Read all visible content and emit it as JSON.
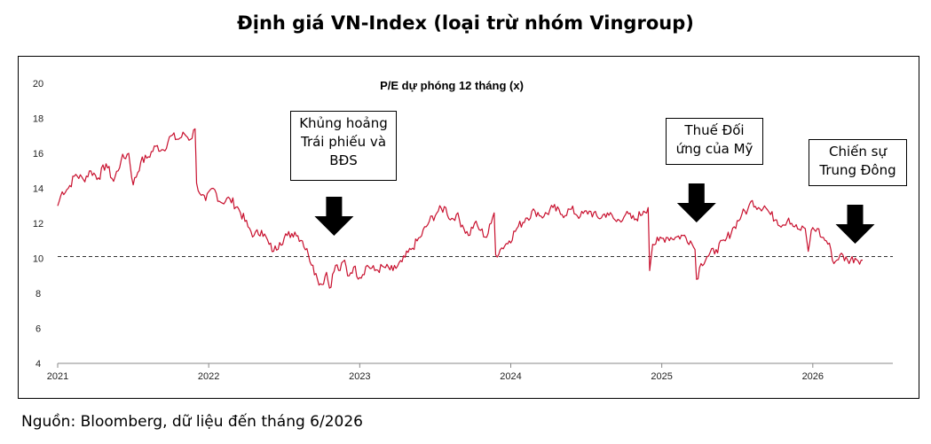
{
  "page": {
    "title": "Định giá VN-Index (loại trừ nhóm Vingroup)",
    "source": "Nguồn: Bloomberg, dữ liệu đến tháng 6/2026"
  },
  "colors": {
    "series": "#c8102e",
    "reference": "#333333",
    "axis": "#888888",
    "arrow": "#000000"
  },
  "chart_data": {
    "type": "line",
    "title": "P/E dự phóng 12 tháng (x)",
    "xlabel": "",
    "ylabel": "",
    "ylim": [
      4,
      20
    ],
    "yticks": [
      4,
      6,
      8,
      10,
      12,
      14,
      16,
      18,
      20
    ],
    "xlim": [
      2021.0,
      2026.53
    ],
    "xticks": [
      "2021",
      "2022",
      "2023",
      "2024",
      "2025",
      "2026"
    ],
    "grid": false,
    "reference_line": {
      "value": 10.1,
      "style": "dashed"
    },
    "series": [
      {
        "values": [
          [
            2021.0,
            13.0
          ],
          [
            2021.03,
            13.8
          ],
          [
            2021.07,
            14.0
          ],
          [
            2021.12,
            14.8
          ],
          [
            2021.17,
            14.5
          ],
          [
            2021.22,
            15.0
          ],
          [
            2021.27,
            14.6
          ],
          [
            2021.32,
            15.4
          ],
          [
            2021.37,
            14.4
          ],
          [
            2021.42,
            15.6
          ],
          [
            2021.47,
            16.0
          ],
          [
            2021.5,
            14.2
          ],
          [
            2021.55,
            15.5
          ],
          [
            2021.6,
            15.8
          ],
          [
            2021.65,
            16.4
          ],
          [
            2021.7,
            16.2
          ],
          [
            2021.75,
            17.0
          ],
          [
            2021.8,
            16.8
          ],
          [
            2021.84,
            17.1
          ],
          [
            2021.88,
            16.8
          ],
          [
            2021.91,
            17.4
          ],
          [
            2021.92,
            14.3
          ],
          [
            2021.95,
            13.6
          ],
          [
            2021.98,
            13.3
          ],
          [
            2022.03,
            14.0
          ],
          [
            2022.08,
            13.2
          ],
          [
            2022.14,
            13.4
          ],
          [
            2022.2,
            12.8
          ],
          [
            2022.26,
            11.8
          ],
          [
            2022.3,
            11.3
          ],
          [
            2022.35,
            11.6
          ],
          [
            2022.4,
            10.8
          ],
          [
            2022.43,
            10.4
          ],
          [
            2022.47,
            10.9
          ],
          [
            2022.52,
            11.3
          ],
          [
            2022.57,
            11.5
          ],
          [
            2022.62,
            11.0
          ],
          [
            2022.66,
            10.2
          ],
          [
            2022.69,
            9.6
          ],
          [
            2022.72,
            8.8
          ],
          [
            2022.75,
            8.5
          ],
          [
            2022.78,
            9.2
          ],
          [
            2022.8,
            8.3
          ],
          [
            2022.84,
            9.6
          ],
          [
            2022.87,
            9.3
          ],
          [
            2022.9,
            9.9
          ],
          [
            2022.92,
            9.0
          ],
          [
            2022.96,
            9.5
          ],
          [
            2023.0,
            8.9
          ],
          [
            2023.05,
            9.6
          ],
          [
            2023.1,
            9.3
          ],
          [
            2023.16,
            9.5
          ],
          [
            2023.22,
            9.3
          ],
          [
            2023.28,
            9.8
          ],
          [
            2023.34,
            10.5
          ],
          [
            2023.4,
            11.2
          ],
          [
            2023.46,
            12.1
          ],
          [
            2023.52,
            12.7
          ],
          [
            2023.57,
            12.9
          ],
          [
            2023.6,
            12.2
          ],
          [
            2023.64,
            12.5
          ],
          [
            2023.68,
            11.9
          ],
          [
            2023.72,
            11.3
          ],
          [
            2023.76,
            12.0
          ],
          [
            2023.8,
            11.6
          ],
          [
            2023.84,
            11.2
          ],
          [
            2023.87,
            12.0
          ],
          [
            2023.89,
            12.6
          ],
          [
            2023.9,
            10.2
          ],
          [
            2023.94,
            10.6
          ],
          [
            2023.99,
            11.0
          ],
          [
            2024.04,
            11.7
          ],
          [
            2024.1,
            12.3
          ],
          [
            2024.16,
            12.7
          ],
          [
            2024.22,
            12.4
          ],
          [
            2024.28,
            12.9
          ],
          [
            2024.34,
            12.5
          ],
          [
            2024.4,
            12.8
          ],
          [
            2024.46,
            12.4
          ],
          [
            2024.52,
            12.7
          ],
          [
            2024.58,
            12.3
          ],
          [
            2024.64,
            12.6
          ],
          [
            2024.7,
            12.1
          ],
          [
            2024.76,
            12.5
          ],
          [
            2024.82,
            12.2
          ],
          [
            2024.88,
            12.7
          ],
          [
            2024.91,
            12.9
          ],
          [
            2024.92,
            9.3
          ],
          [
            2024.94,
            10.8
          ],
          [
            2024.98,
            11.0
          ],
          [
            2025.03,
            11.2
          ],
          [
            2025.09,
            11.2
          ],
          [
            2025.14,
            11.3
          ],
          [
            2025.19,
            11.0
          ],
          [
            2025.22,
            10.5
          ],
          [
            2025.23,
            8.8
          ],
          [
            2025.26,
            9.7
          ],
          [
            2025.3,
            10.1
          ],
          [
            2025.36,
            10.5
          ],
          [
            2025.42,
            11.0
          ],
          [
            2025.48,
            11.8
          ],
          [
            2025.53,
            12.5
          ],
          [
            2025.57,
            12.8
          ],
          [
            2025.6,
            13.3
          ],
          [
            2025.64,
            12.9
          ],
          [
            2025.68,
            13.0
          ],
          [
            2025.72,
            12.5
          ],
          [
            2025.76,
            12.2
          ],
          [
            2025.8,
            11.9
          ],
          [
            2025.84,
            12.3
          ],
          [
            2025.88,
            11.8
          ],
          [
            2025.92,
            11.6
          ],
          [
            2025.95,
            11.7
          ],
          [
            2025.97,
            10.4
          ],
          [
            2025.99,
            11.6
          ],
          [
            2026.03,
            11.7
          ],
          [
            2026.06,
            11.2
          ],
          [
            2026.09,
            11.0
          ],
          [
            2026.12,
            10.5
          ],
          [
            2026.14,
            9.7
          ],
          [
            2026.18,
            10.2
          ],
          [
            2026.23,
            9.9
          ],
          [
            2026.28,
            10.0
          ],
          [
            2026.33,
            9.9
          ]
        ]
      }
    ],
    "annotations": [
      {
        "text": "Khủng hoảng\nTrái phiếu và\nBĐS",
        "x": 2022.83
      },
      {
        "text": "Thuế Đối\nứng của Mỹ",
        "x": 2025.23
      },
      {
        "text": "Chiến sự\nTrung Đông",
        "x": 2026.28
      }
    ]
  }
}
